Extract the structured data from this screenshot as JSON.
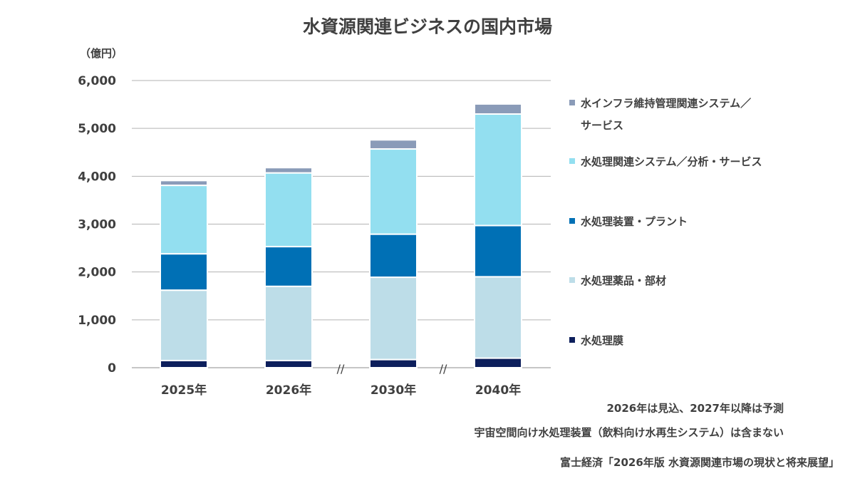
{
  "chart_data": {
    "type": "bar",
    "stacked": true,
    "title": "水資源関連ビジネスの国内市場",
    "ylabel": "（億円）",
    "ylim": [
      0,
      6000
    ],
    "yticks": [
      "0",
      "1,000",
      "2,000",
      "3,000",
      "4,000",
      "5,000",
      "6,000"
    ],
    "categories": [
      "2025年",
      "2026年",
      "2030年",
      "2040年"
    ],
    "axis_break_marks": [
      "//",
      "//"
    ],
    "series": [
      {
        "name": "水処理膜",
        "color": "#0d1f5c",
        "values": [
          150,
          150,
          170,
          200
        ]
      },
      {
        "name": "水処理薬品・部材",
        "color": "#bddde8",
        "values": [
          1470,
          1550,
          1720,
          1700
        ]
      },
      {
        "name": "水処理装置・プラント",
        "color": "#0070b5",
        "values": [
          760,
          830,
          900,
          1070
        ]
      },
      {
        "name": "水処理関連システム／分析・サービス",
        "color": "#93dff0",
        "values": [
          1430,
          1540,
          1780,
          2330
        ]
      },
      {
        "name": "水インフラ維持管理関連システム／サービス",
        "color": "#8a9bb8",
        "values": [
          100,
          110,
          190,
          210
        ]
      }
    ],
    "legend": [
      {
        "lines": [
          "水インフラ維持管理関連システム／",
          "サービス"
        ],
        "color": "#8a9bb8"
      },
      {
        "lines": [
          "水処理関連システム／分析・サービス"
        ],
        "color": "#93dff0"
      },
      {
        "lines": [
          "水処理装置・プラント"
        ],
        "color": "#0070b5"
      },
      {
        "lines": [
          "水処理薬品・部材"
        ],
        "color": "#bddde8"
      },
      {
        "lines": [
          "水処理膜"
        ],
        "color": "#0d1f5c"
      }
    ],
    "grid": true,
    "legend_position": "right"
  },
  "notes": {
    "forecast": "2026年は見込、2027年以降は予測",
    "exclusion": "宇宙空間向け水処理装置（飲料向け水再生システム）は含まない",
    "source": "富士経済「2026年版 水資源関連市場の現状と将来展望」"
  }
}
